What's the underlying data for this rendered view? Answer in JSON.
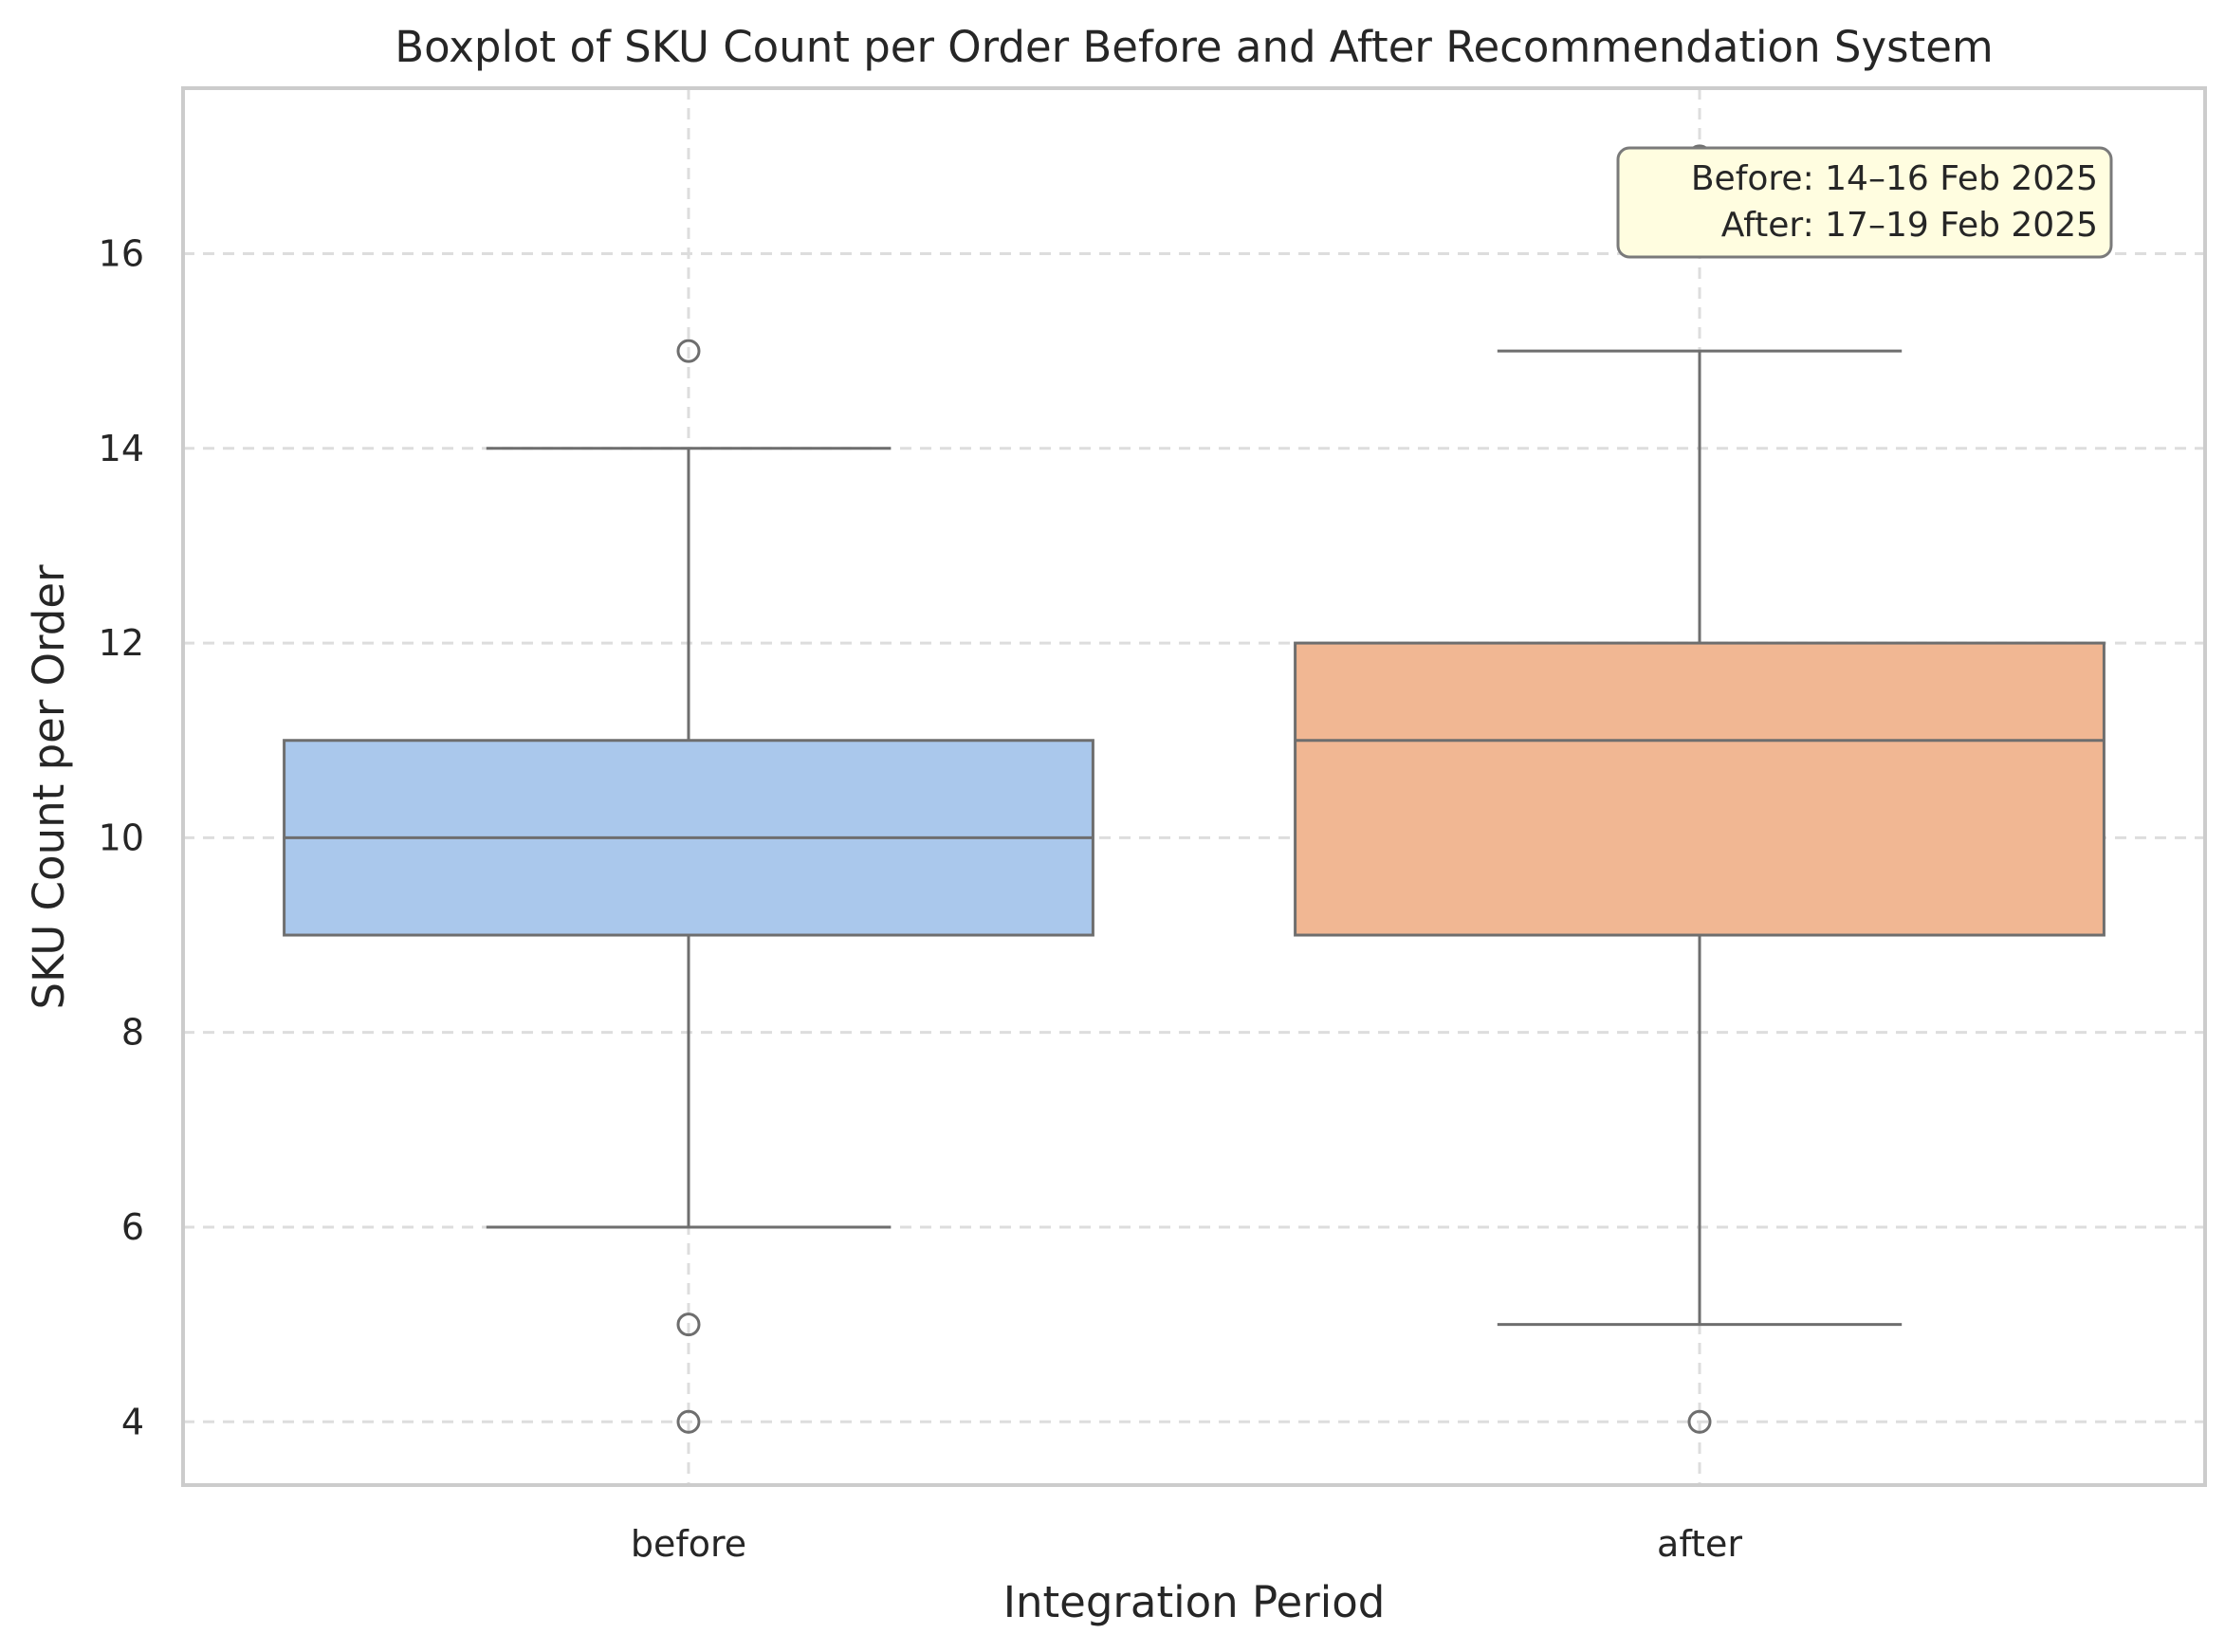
{
  "chart_data": {
    "type": "box",
    "title": "Boxplot of SKU Count per Order Before and After Recommendation System",
    "xlabel": "Integration Period",
    "ylabel": "SKU Count per Order",
    "categories": [
      "before",
      "after"
    ],
    "ylim": [
      3.35,
      17.7
    ],
    "yticks": [
      4,
      6,
      8,
      10,
      12,
      14,
      16
    ],
    "grid": true,
    "boxes": [
      {
        "category": "before",
        "q1": 9,
        "median": 10,
        "q3": 11,
        "whisker_low": 6,
        "whisker_high": 14,
        "outliers": [
          4,
          5,
          15
        ],
        "color": "#aac8ec"
      },
      {
        "category": "after",
        "q1": 9,
        "median": 11,
        "q3": 12,
        "whisker_low": 5,
        "whisker_high": 15,
        "outliers": [
          4,
          17
        ],
        "color": "#f1b793"
      }
    ],
    "annotation": {
      "lines": [
        "Before: 14–16 Feb 2025",
        "After: 17–19 Feb 2025"
      ],
      "position": "top-right",
      "background": "#fffde0"
    }
  }
}
